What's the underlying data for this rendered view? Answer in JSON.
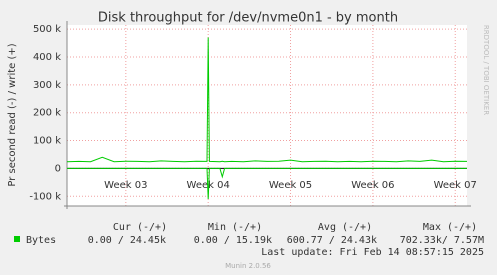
{
  "chart_data": {
    "type": "line",
    "title": "Disk throughput for /dev/nvme0n1 - by month",
    "y_label": "Pr second read (-) / write (+)",
    "side_text": "RRDTOOL / TOBI OETIKER",
    "x": [
      0,
      1,
      2,
      3,
      4,
      5,
      6,
      7,
      8,
      9,
      10,
      11,
      11.9,
      12,
      12.1,
      13,
      13.2,
      13.4,
      14,
      15,
      16,
      17,
      18,
      19,
      20,
      21,
      22,
      23,
      24,
      25,
      26,
      27,
      28,
      29,
      30,
      31,
      32,
      33,
      34
    ],
    "series": [
      {
        "name": "Bytes",
        "color": "#00cc00",
        "values": [
          24000,
          25000,
          24000,
          40000,
          24000,
          26000,
          25000,
          24000,
          27000,
          25000,
          24000,
          26000,
          25000,
          470000,
          25000,
          24000,
          26000,
          24000,
          25000,
          24000,
          27000,
          25000,
          26000,
          30000,
          24000,
          25000,
          26000,
          24000,
          25000,
          24000,
          26000,
          25000,
          24000,
          27000,
          25000,
          30000,
          24000,
          26000,
          25000
        ]
      },
      {
        "color": "#00cc00",
        "values": [
          0,
          0,
          0,
          0,
          0,
          0,
          0,
          0,
          0,
          0,
          0,
          0,
          0,
          -110000,
          0,
          0,
          -30000,
          0,
          0,
          0,
          0,
          0,
          0,
          0,
          0,
          0,
          0,
          0,
          0,
          0,
          0,
          0,
          0,
          0,
          0,
          0,
          0,
          0,
          0
        ]
      }
    ],
    "xlim": [
      0,
      34
    ],
    "xticks": [
      {
        "value": 5,
        "label": "Week 03"
      },
      {
        "value": 12,
        "label": "Week 04"
      },
      {
        "value": 19,
        "label": "Week 05"
      },
      {
        "value": 26,
        "label": "Week 06"
      },
      {
        "value": 33,
        "label": "Week 07"
      }
    ],
    "ylim": [
      -135000,
      515000
    ],
    "yticks": [
      {
        "value": -100000,
        "label": "-100 k"
      },
      0,
      {
        "value": 100000,
        "label": "100 k"
      },
      {
        "value": 200000,
        "label": "200 k"
      },
      {
        "value": 300000,
        "label": "300 k"
      },
      {
        "value": 400000,
        "label": "400 k"
      },
      {
        "value": 500000,
        "label": "500 k"
      }
    ],
    "grid": true,
    "legend_headers": [
      "Cur (-/+)",
      "Min (-/+)",
      "Avg (-/+)",
      "Max (-/+)"
    ],
    "legend_stats": [
      "0.00 / 24.45k",
      "0.00 / 15.19k",
      "600.77 / 24.43k",
      "702.33k/  7.57M"
    ],
    "last_update": "Last update: Fri Feb 14 08:57:15 2025",
    "footer": "Munin 2.0.56"
  }
}
